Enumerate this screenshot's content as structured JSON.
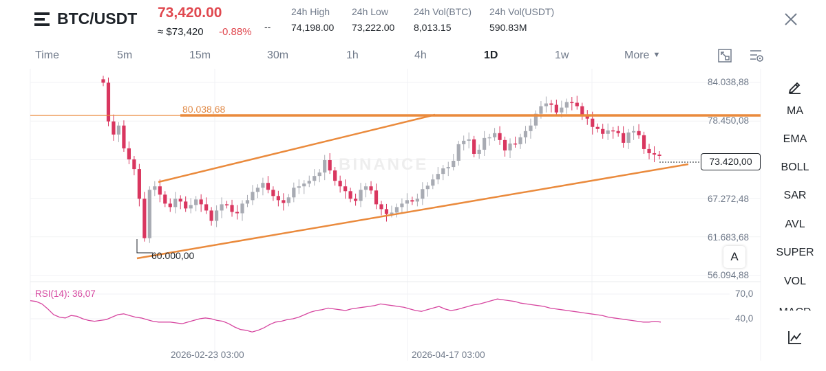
{
  "header": {
    "pair": "BTC/USDT",
    "last_price": "73,420.00",
    "approx_value": "≈ $73,420",
    "change_pct": "-0.88%",
    "dash": "--",
    "stats": [
      {
        "label": "24h High",
        "value": "74,198.00"
      },
      {
        "label": "24h Low",
        "value": "73,222.00"
      },
      {
        "label": "24h Vol(BTC)",
        "value": "8,013.15"
      },
      {
        "label": "24h Vol(USDT)",
        "value": "590.83M"
      }
    ]
  },
  "tabs": [
    "Time",
    "5m",
    "15m",
    "30m",
    "1h",
    "4h",
    "1D",
    "1w",
    "More"
  ],
  "active_tab": "1D",
  "price_axis": [
    "84.038,88",
    "78.450,08",
    "67.272,48",
    "61.683,68",
    "56.094,88"
  ],
  "current_price": "73.420,00",
  "annotations": {
    "resistance": "80.038,68",
    "low": "60.000,00"
  },
  "watermark": "BINANCE",
  "a_button": "A",
  "rsi": {
    "label": "RSI(14): 36,07",
    "levels": [
      "70,0",
      "40,0"
    ]
  },
  "time_axis": [
    "2026-02-23 03:00",
    "2026-04-17 03:00"
  ],
  "indicators": [
    "MA",
    "EMA",
    "BOLL",
    "SAR",
    "AVL",
    "SUPER",
    "VOL",
    "MACD"
  ],
  "icons": {
    "menu": "menu-icon",
    "close": "close-icon",
    "fullscreen": "fullscreen-icon",
    "settings": "chart-settings-icon",
    "draw": "pencil-icon",
    "indicator": "line-chart-icon"
  },
  "colors": {
    "up": "#a8abb3",
    "down": "#d9365f",
    "price_red": "#e0484f",
    "trendline": "#ea8a3c",
    "rsi": "#d6459f"
  },
  "chart_data": {
    "type": "candlestick",
    "ylim": [
      56094.88,
      84038.88
    ],
    "resistance_level": 80038.68,
    "support_low": 60000.0,
    "last": 73420.0,
    "candles_close_approx": [
      84000,
      78400,
      76500,
      77800,
      74500,
      72900,
      71500,
      67200,
      61500,
      68500,
      69000,
      67800,
      66500,
      66000,
      67200,
      66800,
      65800,
      66300,
      67100,
      66400,
      65500,
      64000,
      65500,
      66400,
      66300,
      65300,
      65100,
      66500,
      67000,
      68200,
      68800,
      69500,
      68500,
      67600,
      67000,
      66600,
      67400,
      68800,
      69000,
      69400,
      69800,
      70500,
      71000,
      72800,
      71300,
      69800,
      69000,
      68300,
      67200,
      66900,
      68500,
      69000,
      68400,
      66400,
      65700,
      65000,
      65200,
      66000,
      66500,
      67000,
      66800,
      67200,
      68600,
      69100,
      70000,
      70800,
      71600,
      71800,
      72700,
      75100,
      75600,
      75800,
      73700,
      74300,
      76000,
      76100,
      76700,
      75700,
      74200,
      75200,
      75100,
      76100,
      77000,
      77800,
      79500,
      80600,
      81000,
      80800,
      79700,
      80400,
      81200,
      81100,
      80600,
      79300,
      78800,
      77600,
      77300,
      76600,
      77100,
      77000,
      76700,
      75300,
      76800,
      77000,
      76400,
      74400,
      73800,
      73600,
      73400
    ],
    "rsi_levels": [
      70.0,
      40.0
    ],
    "rsi_last": 36.07
  }
}
